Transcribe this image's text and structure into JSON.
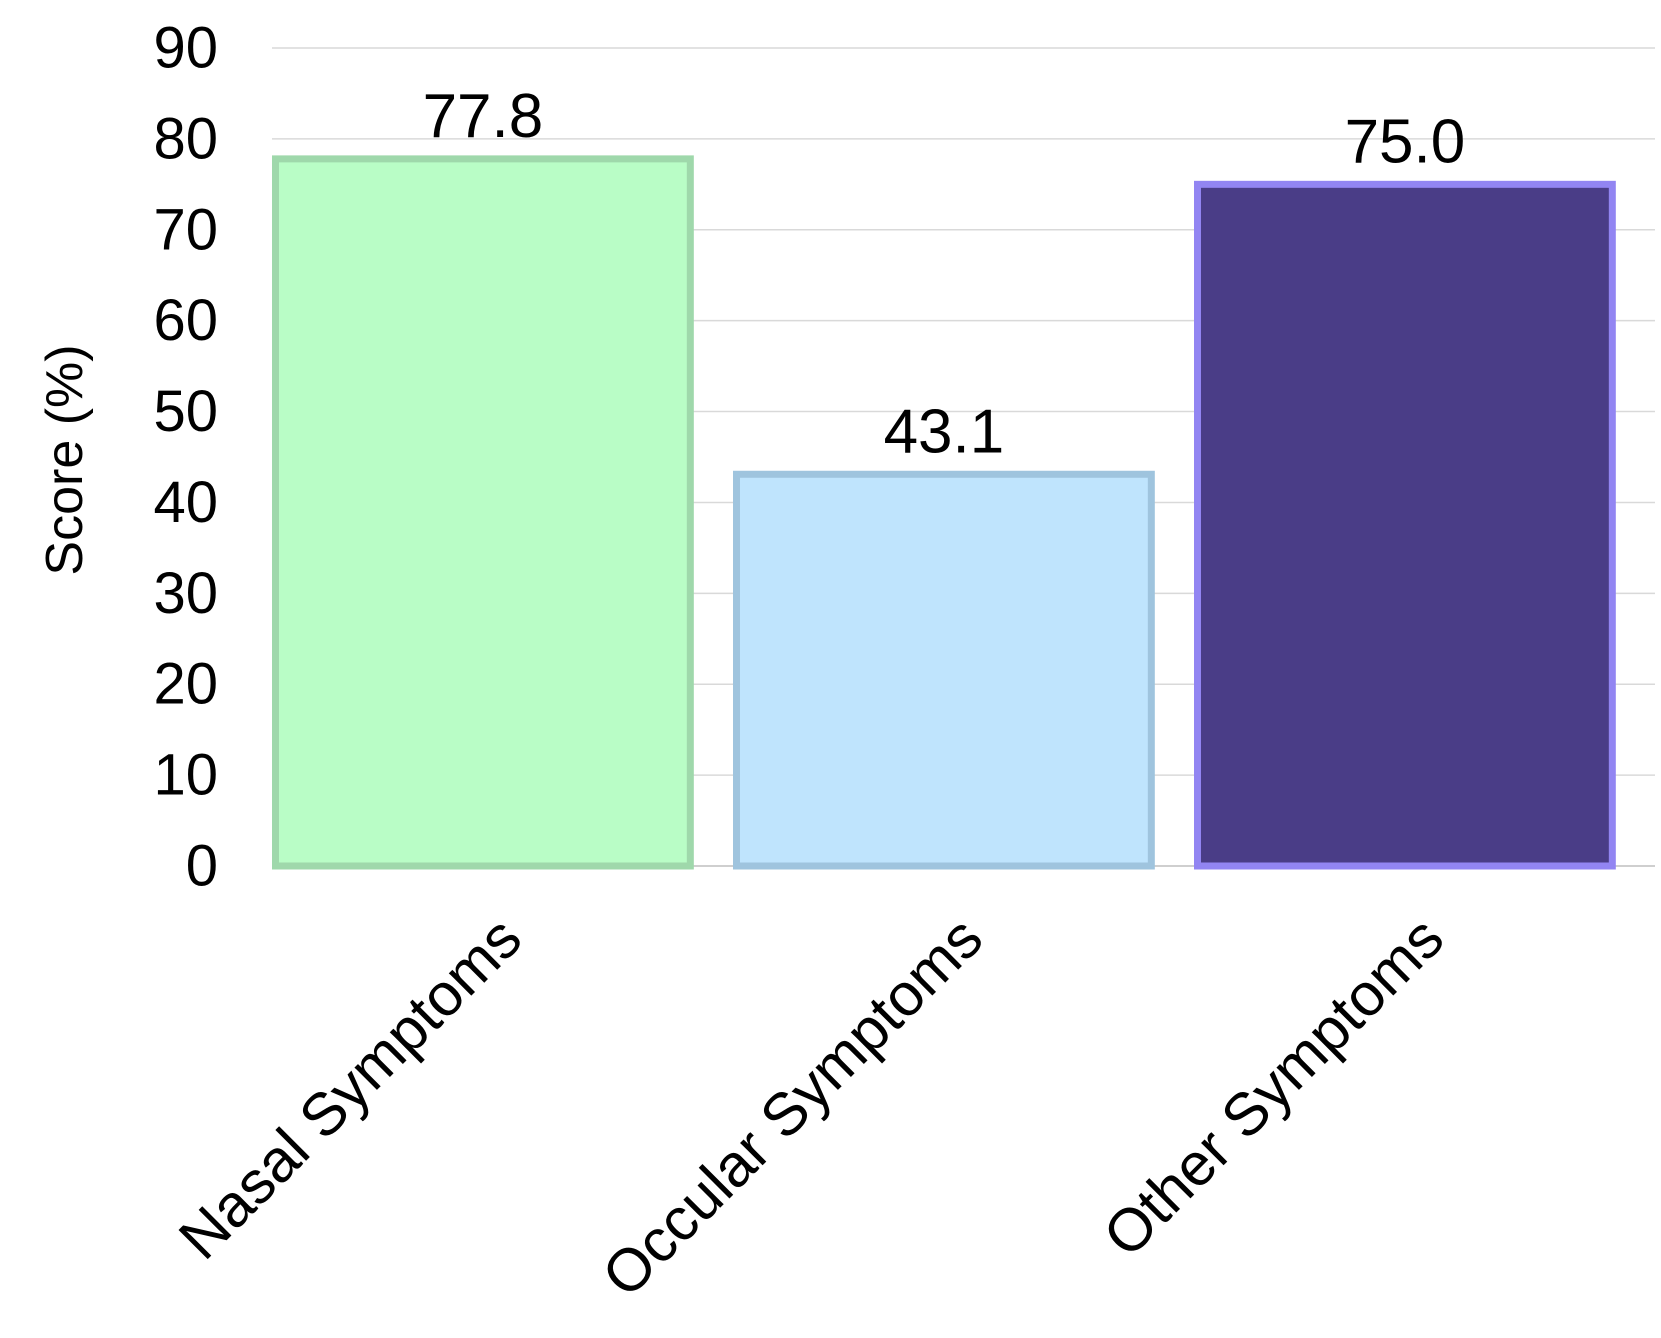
{
  "chart_data": {
    "type": "bar",
    "title": "",
    "xlabel": "",
    "ylabel": "Score (%)",
    "ylim": [
      0,
      90
    ],
    "yticks": [
      0,
      10,
      20,
      30,
      40,
      50,
      60,
      70,
      80,
      90
    ],
    "grid": true,
    "legend": "none",
    "categories": [
      "Nasal Symptoms",
      "Occular Symptoms",
      "Other Symptoms"
    ],
    "values": [
      77.8,
      43.1,
      75.0
    ],
    "data_labels": [
      "77.8",
      "43.1",
      "75.0"
    ],
    "bar_fill_colors": [
      "#b9fdc6",
      "#bfe4fd",
      "#4a3d87"
    ],
    "bar_border_colors": [
      "#9fd8ab",
      "#9fc4de",
      "#9285f2"
    ]
  }
}
